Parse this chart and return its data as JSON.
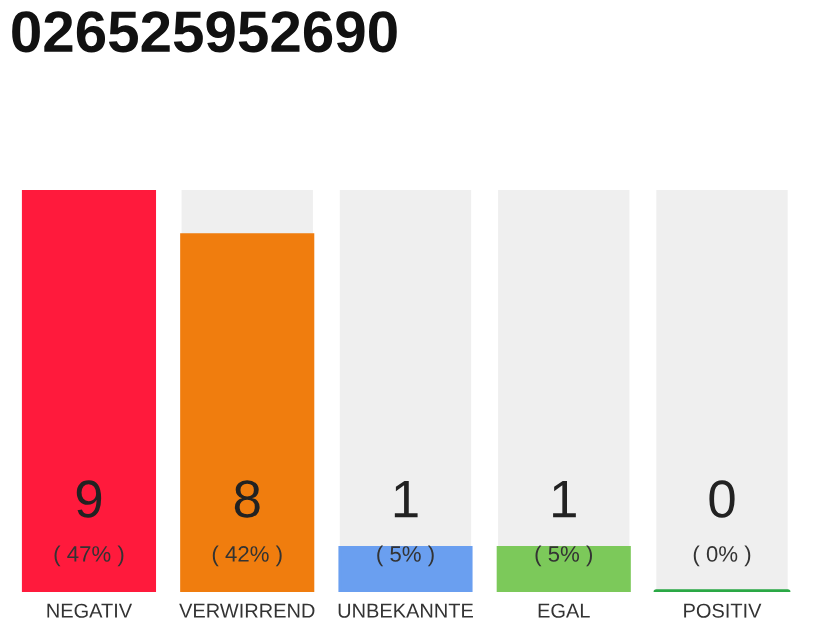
{
  "chart_data": {
    "type": "bar",
    "title": "026525952690",
    "categories": [
      "NEGATIV",
      "VERWIRREND",
      "UNBEKANNTE",
      "EGAL",
      "POSITIV"
    ],
    "values": [
      9,
      8,
      1,
      1,
      0
    ],
    "colors": [
      "#ff1a3c",
      "#f07d0e",
      "#6a9ff0",
      "#7cc95a",
      "#2aa845"
    ],
    "value_labels": [
      "9\n( 47% )",
      "8\n( 42% )",
      "1\n( 5% )",
      "1\n( 5% )",
      "0\n( 0% )"
    ],
    "grid": false,
    "legend": false
  }
}
